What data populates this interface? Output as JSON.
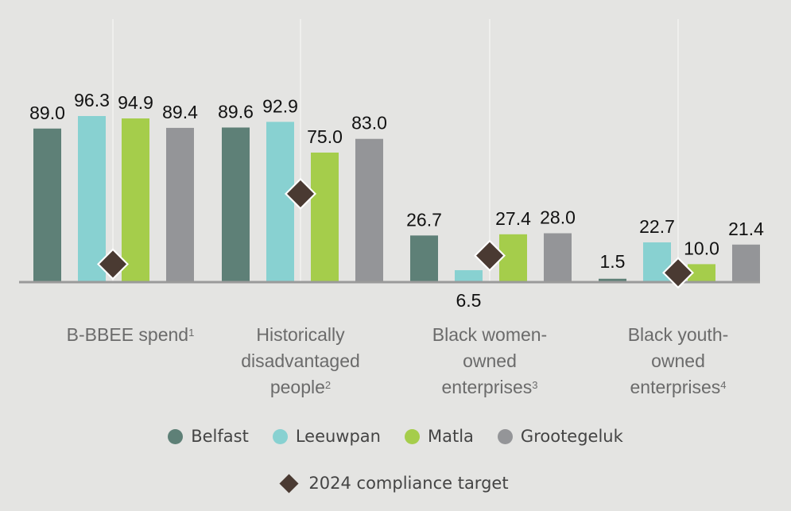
{
  "chart_data": {
    "type": "bar",
    "title": "",
    "xlabel": "",
    "ylabel": "",
    "ylim": [
      0,
      100
    ],
    "grid": "vertical lines at category centers",
    "legend_placement": "bottom-center",
    "categories": [
      {
        "lines": [
          "B-BBEE spend"
        ],
        "footnote": "1"
      },
      {
        "lines": [
          "Historically",
          "disadvantaged",
          "people"
        ],
        "footnote": "2"
      },
      {
        "lines": [
          "Black women-",
          "owned",
          "enterprises"
        ],
        "footnote": "3"
      },
      {
        "lines": [
          "Black youth-",
          "owned",
          "enterprises"
        ],
        "footnote": "4"
      }
    ],
    "series": [
      {
        "name": "Belfast",
        "color": "#5e8077",
        "values": [
          89.0,
          89.6,
          26.7,
          1.5
        ],
        "labels": [
          "89.0",
          "89.6",
          "26.7",
          "1.5"
        ]
      },
      {
        "name": "Leeuwpan",
        "color": "#88d1d1",
        "values": [
          96.3,
          92.9,
          6.5,
          22.7
        ],
        "labels": [
          "96.3",
          "92.9",
          "6.5",
          "22.7"
        ]
      },
      {
        "name": "Matla",
        "color": "#a5cd4b",
        "values": [
          94.9,
          75.0,
          27.4,
          10.0
        ],
        "labels": [
          "94.9",
          "75.0",
          "27.4",
          "10.0"
        ]
      },
      {
        "name": "Grootegeluk",
        "color": "#949598",
        "values": [
          89.4,
          83.0,
          28.0,
          21.4
        ],
        "labels": [
          "89.4",
          "83.0",
          "28.0",
          "21.4"
        ]
      }
    ],
    "target": {
      "name": "2024 compliance target",
      "color": "#4a3a32",
      "values": [
        10,
        51,
        15,
        5
      ]
    }
  },
  "legend": {
    "items": [
      "Belfast",
      "Leeuwpan",
      "Matla",
      "Grootegeluk"
    ],
    "target_label": "2024 compliance target"
  }
}
